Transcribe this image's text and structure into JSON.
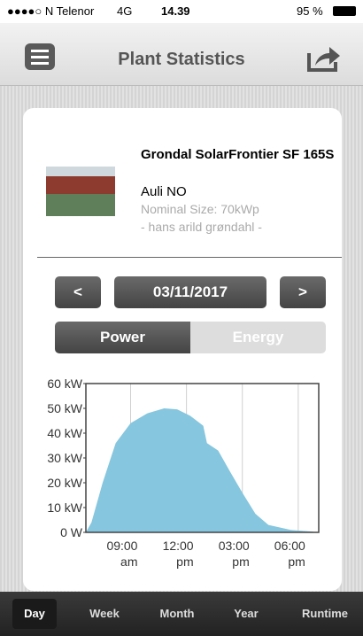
{
  "status": {
    "carrier": "●●●●○ N Telenor",
    "network": "4G",
    "time": "14.39",
    "battery": "95 %"
  },
  "header": {
    "title": "Plant Statistics"
  },
  "plant": {
    "name": "Grondal SolarFrontier SF 165S",
    "location": "Auli NO",
    "size": "Nominal Size: 70kWp",
    "owner": "- hans arild grøndahl -"
  },
  "date": {
    "prev": "<",
    "value": "03/11/2017",
    "next": ">"
  },
  "toggle": [
    "Power",
    "Energy"
  ],
  "tabs": [
    "Day",
    "Week",
    "Month",
    "Year",
    "Runtime"
  ],
  "chart_data": {
    "type": "area",
    "color": "#86c6de",
    "grid": "x",
    "x": [
      6.6,
      6.9,
      7.5,
      8.2,
      9,
      9.9,
      10.8,
      11.5,
      12.2,
      12.9,
      13.1,
      13.7,
      14.3,
      15,
      15.7,
      16.4,
      17.6,
      18.8
    ],
    "values": [
      0,
      4,
      20,
      36,
      44,
      48,
      50,
      49.6,
      47,
      43,
      36,
      33,
      25,
      16,
      7.5,
      3,
      1,
      0.3
    ],
    "xlim": [
      6.6,
      19.1
    ],
    "ylim": [
      0,
      60
    ],
    "xticks": [
      {
        "value": 9,
        "label": "09:00 am"
      },
      {
        "value": 12,
        "label": "12:00 pm"
      },
      {
        "value": 15,
        "label": "03:00 pm"
      },
      {
        "value": 18,
        "label": "06:00 pm"
      }
    ],
    "yticks": [
      {
        "value": 0,
        "label": "0 W"
      },
      {
        "value": 10,
        "label": "10 kW"
      },
      {
        "value": 20,
        "label": "20 kW"
      },
      {
        "value": 30,
        "label": "30 kW"
      },
      {
        "value": 40,
        "label": "40 kW"
      },
      {
        "value": 50,
        "label": "50 kW"
      },
      {
        "value": 60,
        "label": "60 kW"
      }
    ]
  }
}
